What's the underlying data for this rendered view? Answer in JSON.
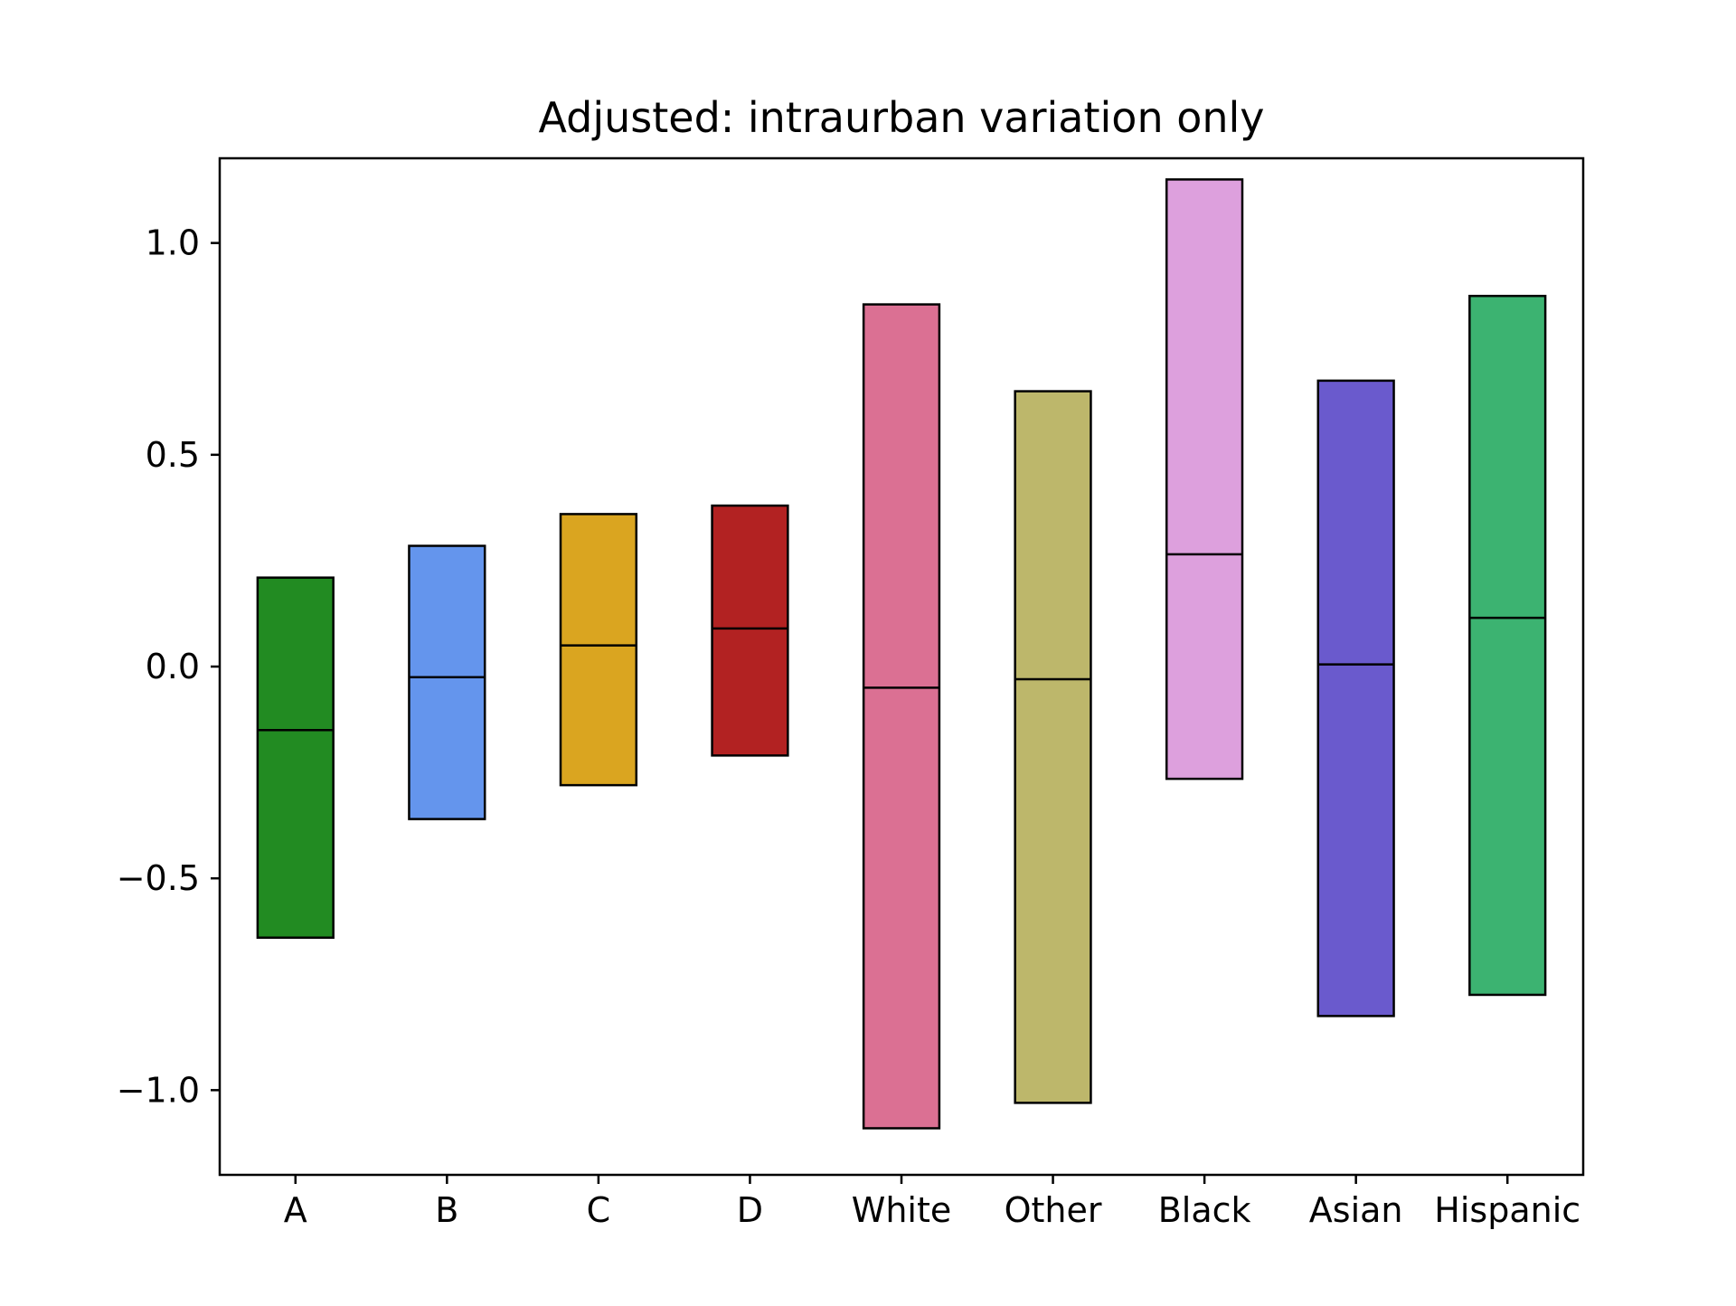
{
  "chart_data": {
    "type": "bar",
    "chart_kind": "floating range bars with median line",
    "title": "Adjusted: intraurban variation only",
    "xlabel": "",
    "ylabel": "",
    "ylim": [
      -1.2,
      1.2
    ],
    "yticks": [
      1.0,
      0.5,
      0.0,
      -0.5,
      -1.0
    ],
    "ytick_labels": [
      "1.0",
      "0.5",
      "0.0",
      "−0.5",
      "−1.0"
    ],
    "grid": false,
    "legend": "none",
    "categories": [
      "A",
      "B",
      "C",
      "D",
      "White",
      "Other",
      "Black",
      "Asian",
      "Hispanic"
    ],
    "series": [
      {
        "low": [
          -0.64,
          -0.36,
          -0.28,
          -0.21,
          -1.09,
          -1.03,
          -0.265,
          -0.825,
          -0.775
        ],
        "high": [
          0.21,
          0.285,
          0.36,
          0.38,
          0.855,
          0.65,
          1.15,
          0.675,
          0.875
        ],
        "median": [
          -0.15,
          -0.025,
          0.05,
          0.09,
          -0.05,
          -0.03,
          0.265,
          0.005,
          0.115
        ]
      }
    ],
    "colors": [
      "#228b22",
      "#6495ed",
      "#daa520",
      "#b22222",
      "#db7093",
      "#bdb76b",
      "#dda0dd",
      "#6a5acd",
      "#3cb371"
    ],
    "edge_color": "#000000"
  }
}
